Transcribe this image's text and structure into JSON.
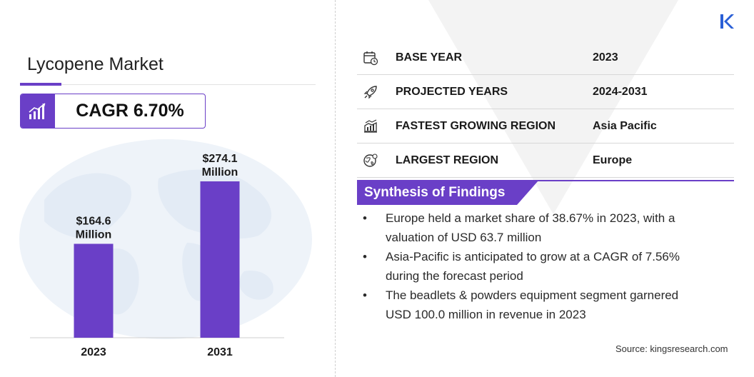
{
  "title": "Lycopene Market",
  "cagr": "CAGR 6.70%",
  "colors": {
    "accent": "#6a3fc7",
    "bar": "#6a3fc7",
    "globe": "#e8f0f8",
    "logo": "#2a5fd6"
  },
  "chart_data": {
    "type": "bar",
    "categories": [
      "2023",
      "2031"
    ],
    "values": [
      164.6,
      274.1
    ],
    "data_labels": [
      [
        "$164.6",
        "Million"
      ],
      [
        "$274.1",
        "Million"
      ]
    ],
    "unit": "USD Million"
  },
  "info": [
    {
      "icon": "calendar-icon",
      "label": "BASE YEAR",
      "value": "2023"
    },
    {
      "icon": "rocket-icon",
      "label": "PROJECTED YEARS",
      "value": "2024-2031"
    },
    {
      "icon": "region-growth-icon",
      "label": "FASTEST GROWING REGION",
      "value": "Asia Pacific"
    },
    {
      "icon": "globe-icon",
      "label": "LARGEST REGION",
      "value": "Europe"
    }
  ],
  "synthesis": {
    "title": "Synthesis of Findings",
    "bullet_symbol": "•",
    "items": [
      [
        "Europe held a market share of 38.67% in 2023, with a",
        "valuation of USD 63.7 million"
      ],
      [
        "Asia-Pacific is anticipated to grow at a CAGR of 7.56%",
        "during the forecast period"
      ],
      [
        "The beadlets & powders equipment segment garnered",
        "USD 100.0 million in revenue in 2023"
      ]
    ]
  },
  "source": "Source:  kingsresearch.com"
}
